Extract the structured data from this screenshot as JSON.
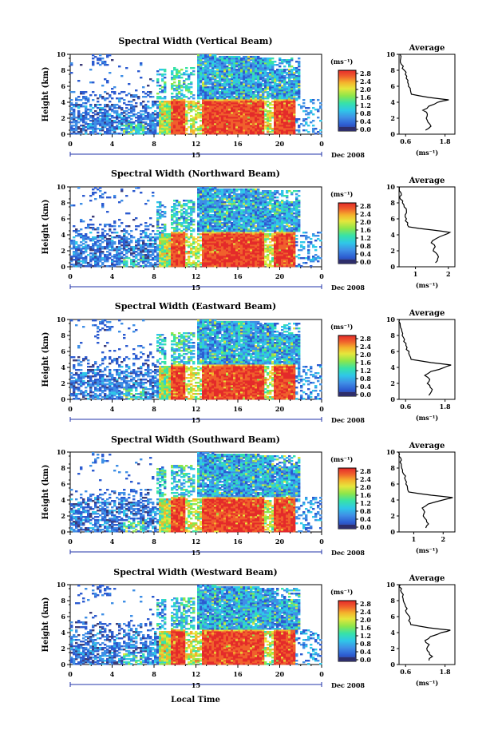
{
  "colors": {
    "bg": "#ffffff",
    "axis": "#000000"
  },
  "colorbar": {
    "unit": "(ms⁻¹)",
    "ticks": [
      "2.8",
      "2.4",
      "2.0",
      "1.6",
      "1.2",
      "0.8",
      "0.4",
      "0.0"
    ],
    "range": [
      0.0,
      3.2
    ],
    "colors": [
      "#3c3c78",
      "#2c5bd0",
      "#3f8fe6",
      "#2fc7e8",
      "#37e2a8",
      "#8ee64a",
      "#e6e63c",
      "#f4b22c",
      "#f0602c",
      "#e42a2a"
    ]
  },
  "x_axis": {
    "ticks": [
      "0",
      "4",
      "8",
      "12",
      "16",
      "20",
      "0"
    ],
    "date_marker": "15",
    "date_label": "Dec 2008",
    "label": "Local Time"
  },
  "y_axis": {
    "label": "Height (km)",
    "ticks": [
      "0",
      "2",
      "4",
      "6",
      "8",
      "10"
    ]
  },
  "average": {
    "title": "Average",
    "xlabel": "(ms⁻¹)"
  },
  "chart_data": [
    {
      "type": "heatmap",
      "title": "Spectral Width (Vertical Beam)",
      "avg_xticks": [
        "0.6",
        "1.8"
      ],
      "avg_xlim": [
        0.4,
        2.1
      ],
      "avg_profile": [
        [
          0.5,
          1.2
        ],
        [
          1.0,
          1.35
        ],
        [
          1.5,
          1.3
        ],
        [
          2.0,
          1.2
        ],
        [
          2.5,
          1.25
        ],
        [
          3.0,
          1.15
        ],
        [
          3.5,
          1.3
        ],
        [
          4.0,
          1.6
        ],
        [
          4.3,
          1.9
        ],
        [
          4.6,
          1.3
        ],
        [
          5.0,
          0.75
        ],
        [
          5.5,
          0.72
        ],
        [
          6.0,
          0.7
        ],
        [
          6.5,
          0.65
        ],
        [
          7.0,
          0.62
        ],
        [
          7.5,
          0.6
        ],
        [
          8.0,
          0.55
        ],
        [
          8.5,
          0.5
        ],
        [
          9.0,
          0.45
        ],
        [
          9.5,
          0.45
        ],
        [
          10.0,
          0.4
        ]
      ]
    },
    {
      "type": "heatmap",
      "title": "Spectral Width (Northward Beam)",
      "avg_xticks": [
        "1",
        "2"
      ],
      "avg_xlim": [
        0.5,
        2.2
      ],
      "avg_profile": [
        [
          0.5,
          1.6
        ],
        [
          1.0,
          1.7
        ],
        [
          1.5,
          1.65
        ],
        [
          2.0,
          1.55
        ],
        [
          2.5,
          1.6
        ],
        [
          3.0,
          1.5
        ],
        [
          3.5,
          1.6
        ],
        [
          4.0,
          1.9
        ],
        [
          4.3,
          2.05
        ],
        [
          4.6,
          1.5
        ],
        [
          5.0,
          0.8
        ],
        [
          5.5,
          0.75
        ],
        [
          6.0,
          0.7
        ],
        [
          6.5,
          0.7
        ],
        [
          7.0,
          0.72
        ],
        [
          7.5,
          0.65
        ],
        [
          8.0,
          0.6
        ],
        [
          8.5,
          0.55
        ],
        [
          9.0,
          0.55
        ],
        [
          9.5,
          0.52
        ],
        [
          10.0,
          0.5
        ]
      ]
    },
    {
      "type": "heatmap",
      "title": "Spectral Width (Eastward Beam)",
      "avg_xticks": [
        "0.6",
        "1.8"
      ],
      "avg_xlim": [
        0.4,
        2.1
      ],
      "avg_profile": [
        [
          0.5,
          1.3
        ],
        [
          1.0,
          1.4
        ],
        [
          1.5,
          1.35
        ],
        [
          2.0,
          1.25
        ],
        [
          2.5,
          1.35
        ],
        [
          3.0,
          1.2
        ],
        [
          3.5,
          1.4
        ],
        [
          4.0,
          1.8
        ],
        [
          4.3,
          2.0
        ],
        [
          4.6,
          1.4
        ],
        [
          5.0,
          0.75
        ],
        [
          5.5,
          0.72
        ],
        [
          6.0,
          0.7
        ],
        [
          6.5,
          0.62
        ],
        [
          7.0,
          0.6
        ],
        [
          7.5,
          0.55
        ],
        [
          8.0,
          0.5
        ],
        [
          8.5,
          0.48
        ],
        [
          9.0,
          0.45
        ],
        [
          9.5,
          0.45
        ],
        [
          10.0,
          0.42
        ]
      ]
    },
    {
      "type": "heatmap",
      "title": "Spectral Width (Southward Beam)",
      "avg_xticks": [
        "1",
        "2"
      ],
      "avg_xlim": [
        0.5,
        2.4
      ],
      "avg_profile": [
        [
          0.5,
          1.4
        ],
        [
          1.0,
          1.5
        ],
        [
          1.5,
          1.45
        ],
        [
          2.0,
          1.35
        ],
        [
          2.5,
          1.4
        ],
        [
          3.0,
          1.3
        ],
        [
          3.5,
          1.5
        ],
        [
          4.0,
          2.0
        ],
        [
          4.3,
          2.3
        ],
        [
          4.6,
          1.6
        ],
        [
          5.0,
          0.85
        ],
        [
          5.5,
          0.8
        ],
        [
          6.0,
          0.75
        ],
        [
          6.5,
          0.72
        ],
        [
          7.0,
          0.7
        ],
        [
          7.5,
          0.65
        ],
        [
          8.0,
          0.6
        ],
        [
          8.5,
          0.55
        ],
        [
          9.0,
          0.55
        ],
        [
          9.5,
          0.52
        ],
        [
          10.0,
          0.5
        ]
      ]
    },
    {
      "type": "heatmap",
      "title": "Spectral Width (Westward Beam)",
      "avg_xticks": [
        "0.6",
        "1.8"
      ],
      "avg_xlim": [
        0.4,
        2.1
      ],
      "avg_profile": [
        [
          0.5,
          1.3
        ],
        [
          1.0,
          1.4
        ],
        [
          1.5,
          1.3
        ],
        [
          2.0,
          1.25
        ],
        [
          2.5,
          1.3
        ],
        [
          3.0,
          1.2
        ],
        [
          3.5,
          1.35
        ],
        [
          4.0,
          1.7
        ],
        [
          4.3,
          1.95
        ],
        [
          4.6,
          1.3
        ],
        [
          5.0,
          0.75
        ],
        [
          5.5,
          0.72
        ],
        [
          6.0,
          0.7
        ],
        [
          6.5,
          0.65
        ],
        [
          7.0,
          0.62
        ],
        [
          7.5,
          0.6
        ],
        [
          8.0,
          0.55
        ],
        [
          8.5,
          0.52
        ],
        [
          9.0,
          0.48
        ],
        [
          9.5,
          0.45
        ],
        [
          10.0,
          0.42
        ]
      ]
    }
  ]
}
